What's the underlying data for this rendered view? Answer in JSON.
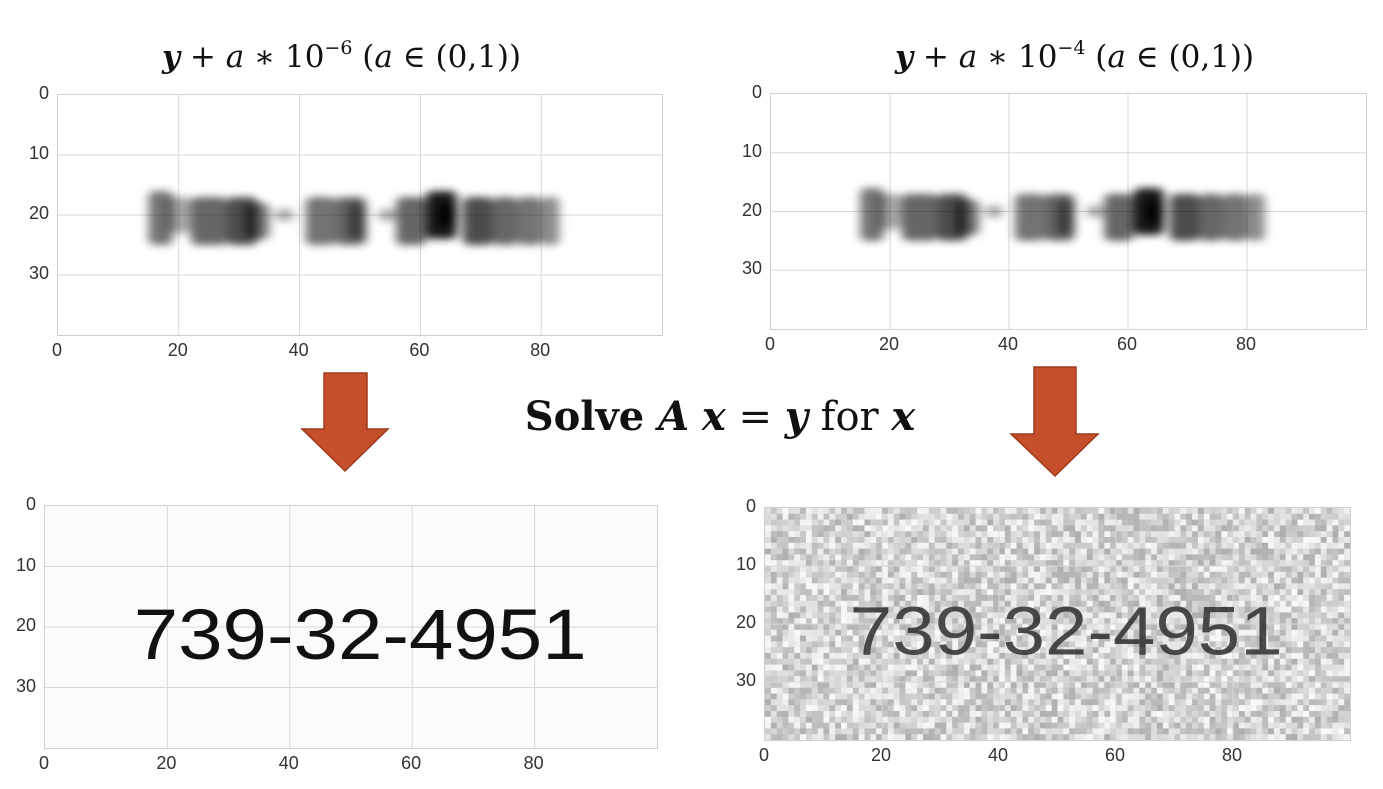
{
  "titles": {
    "left": {
      "lhs": "y",
      "op": " + ",
      "coef": "a",
      "times": " ∗ 10",
      "exp": "−6",
      "domain_open": " (",
      "a2": "a",
      "domain_rest": " ∈ (0,1))"
    },
    "right": {
      "lhs": "y",
      "op": " + ",
      "coef": "a",
      "times": " ∗ 10",
      "exp": "−4",
      "domain_open": " (",
      "a2": "a",
      "domain_rest": " ∈ (0,1))"
    }
  },
  "equation": {
    "solve": "Solve ",
    "A": "A",
    "x": "x",
    "eq": " = ",
    "y": "y",
    "for": " for ",
    "x2": "x"
  },
  "plots": [
    {
      "name": "blurred-noise-1e-6",
      "xticks": [
        "0",
        "20",
        "40",
        "60",
        "80"
      ],
      "yticks": [
        "0",
        "10",
        "20",
        "30"
      ],
      "xlim": [
        0,
        100
      ],
      "ylim": [
        40,
        0
      ],
      "image": "blurred"
    },
    {
      "name": "blurred-noise-1e-4",
      "xticks": [
        "0",
        "20",
        "40",
        "60",
        "80"
      ],
      "yticks": [
        "0",
        "10",
        "20",
        "30"
      ],
      "xlim": [
        0,
        100
      ],
      "ylim": [
        40,
        0
      ],
      "image": "blurred"
    },
    {
      "name": "recovered-1e-6",
      "xticks": [
        "0",
        "20",
        "40",
        "60",
        "80"
      ],
      "yticks": [
        "0",
        "10",
        "20",
        "30"
      ],
      "xlim": [
        0,
        100
      ],
      "ylim": [
        40,
        0
      ],
      "image": "clean",
      "text": "739-32-4951"
    },
    {
      "name": "recovered-1e-4",
      "xticks": [
        "0",
        "20",
        "40",
        "60",
        "80"
      ],
      "yticks": [
        "0",
        "10",
        "20",
        "30"
      ],
      "xlim": [
        0,
        100
      ],
      "ylim": [
        40,
        0
      ],
      "image": "noisy",
      "text": "739-32-4951"
    }
  ],
  "colors": {
    "arrow": "#c54f2b",
    "arrow_edge": "#9e3a1c",
    "grid": "#d8d8d8"
  }
}
